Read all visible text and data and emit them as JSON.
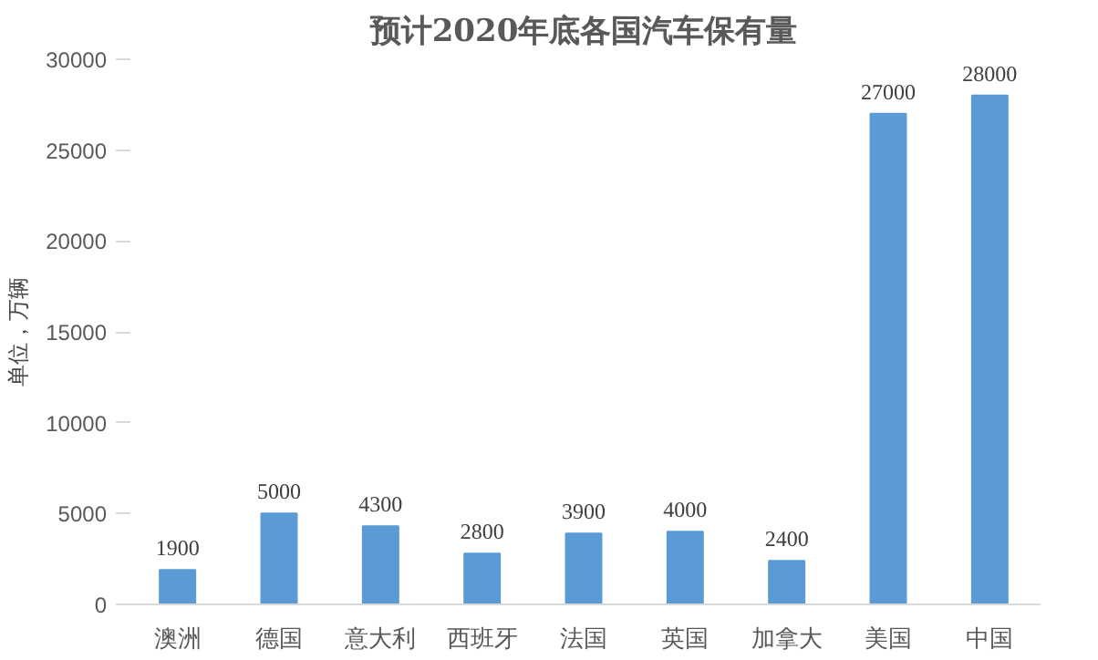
{
  "chart_data": {
    "type": "bar",
    "title": "预计2020年底各国汽车保有量",
    "ylabel": "单位，万辆",
    "categories": [
      "澳洲",
      "德国",
      "意大利",
      "西班牙",
      "法国",
      "英国",
      "加拿大",
      "美国",
      "中国"
    ],
    "values": [
      1900,
      5000,
      4300,
      2800,
      3900,
      4000,
      2400,
      27000,
      28000
    ],
    "color": "#5b9bd5",
    "ylim": [
      0,
      30000
    ],
    "yticks": [
      0,
      5000,
      10000,
      15000,
      20000,
      25000,
      30000
    ],
    "data_labels": true,
    "grid": false
  }
}
